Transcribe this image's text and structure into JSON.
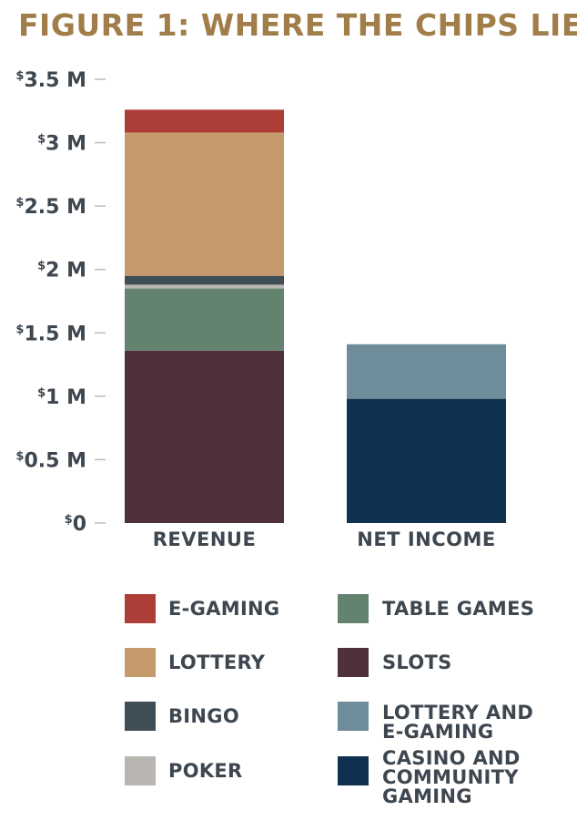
{
  "title": "FIGURE 1: WHERE THE CHIPS LIE",
  "chart_data": {
    "type": "bar",
    "stacked": true,
    "categories": [
      "REVENUE",
      "NET INCOME"
    ],
    "y_ticks": [
      {
        "value": 0,
        "dollar": "$",
        "text": "0"
      },
      {
        "value": 0.5,
        "dollar": "$",
        "text": "0.5 M"
      },
      {
        "value": 1,
        "dollar": "$",
        "text": "1 M"
      },
      {
        "value": 1.5,
        "dollar": "$",
        "text": "1.5 M"
      },
      {
        "value": 2,
        "dollar": "$",
        "text": "2 M"
      },
      {
        "value": 2.5,
        "dollar": "$",
        "text": "2.5 M"
      },
      {
        "value": 3,
        "dollar": "$",
        "text": "3 M"
      },
      {
        "value": 3.5,
        "dollar": "$",
        "text": "3.5 M"
      }
    ],
    "ylim": [
      0,
      3.5
    ],
    "grid": false,
    "series": [
      {
        "name": "SLOTS",
        "color": "#4f313d",
        "values": [
          1.36,
          0
        ]
      },
      {
        "name": "TABLE GAMES",
        "color": "#63836f",
        "values": [
          0.49,
          0
        ]
      },
      {
        "name": "POKER",
        "color": "#b9b5b1",
        "values": [
          0.03,
          0
        ]
      },
      {
        "name": "BINGO",
        "color": "#3f4d57",
        "values": [
          0.07,
          0
        ]
      },
      {
        "name": "LOTTERY",
        "color": "#c59a6c",
        "values": [
          1.13,
          0
        ]
      },
      {
        "name": "E-GAMING",
        "color": "#ac3e37",
        "values": [
          0.18,
          0
        ]
      },
      {
        "name": "CASINO AND COMMUNITY GAMING",
        "color": "#113150",
        "values": [
          0,
          0.98
        ]
      },
      {
        "name": "LOTTERY AND E-GAMING",
        "color": "#6e8c99",
        "values": [
          0,
          0.43
        ]
      }
    ],
    "legend": [
      {
        "label": "E-GAMING",
        "color": "#ac3e37"
      },
      {
        "label": "TABLE GAMES",
        "color": "#63836f"
      },
      {
        "label": "LOTTERY",
        "color": "#c59a6c"
      },
      {
        "label": "SLOTS",
        "color": "#4f313d"
      },
      {
        "label": "BINGO",
        "color": "#3f4d57"
      },
      {
        "label": "LOTTERY AND\nE-GAMING",
        "color": "#6e8c99"
      },
      {
        "label": "POKER",
        "color": "#b9b5b1"
      },
      {
        "label": "CASINO AND\nCOMMUNITY\nGAMING",
        "color": "#113150"
      }
    ],
    "legend_placement": "bottom"
  }
}
